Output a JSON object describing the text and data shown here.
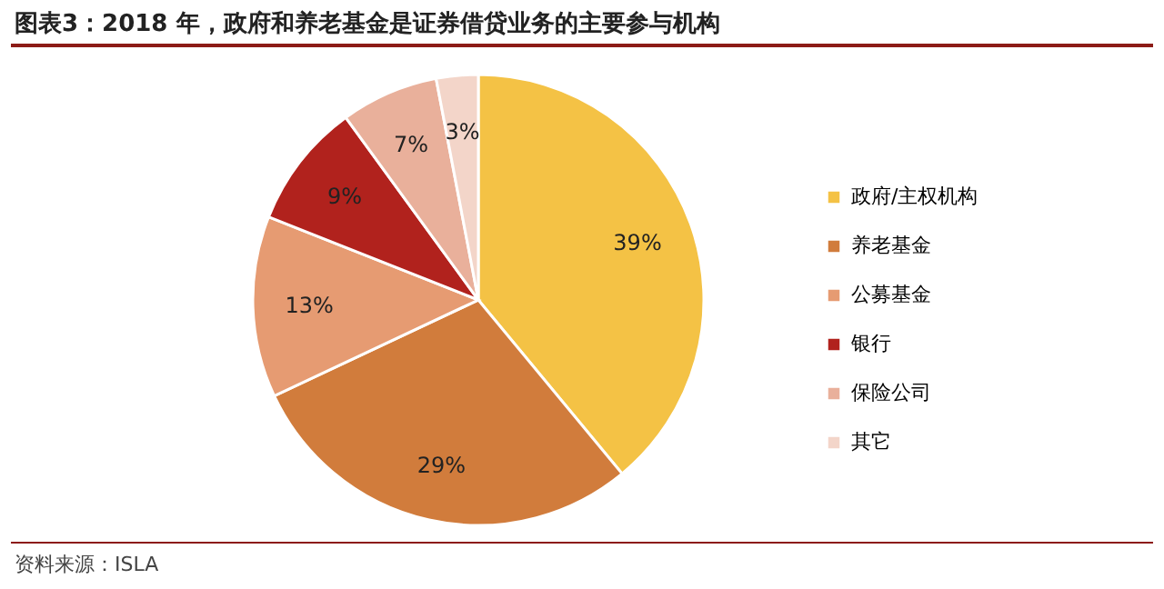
{
  "chart_data": {
    "type": "pie",
    "title": "图表3：2018 年，政府和养老基金是证券借贷业务的主要参与机构",
    "categories": [
      "政府/主权机构",
      "养老基金",
      "公募基金",
      "银行",
      "保险公司",
      "其它"
    ],
    "values": [
      39,
      29,
      13,
      9,
      7,
      3
    ],
    "value_labels": [
      "39%",
      "29%",
      "13%",
      "9%",
      "7%",
      "3%"
    ],
    "colors": [
      "#f4c245",
      "#d17c3c",
      "#e69b72",
      "#b1221d",
      "#e9b09b",
      "#f3d5c9"
    ],
    "legend": "right",
    "annotations": [
      "资料来源：ISLA"
    ]
  }
}
